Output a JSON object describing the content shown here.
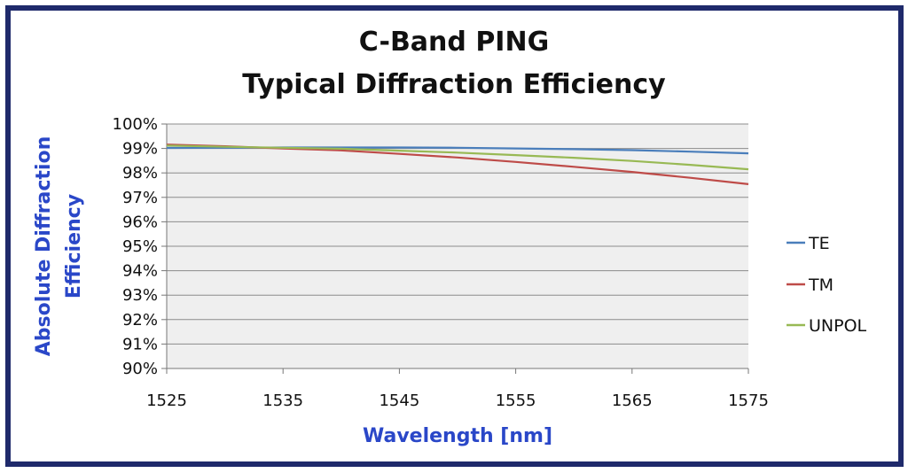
{
  "colors": {
    "border": "#1f2a6b",
    "plot_bg": "#efefef",
    "gridline": "#8c8c8c",
    "axis_label": "#2a47c8"
  },
  "chart_data": {
    "type": "line",
    "title_lines": [
      "C-Band PING",
      "Typical Diffraction Efficiency"
    ],
    "xlabel": "Wavelength [nm]",
    "ylabel_lines": [
      "Absolute Diffraction",
      "Efficiency"
    ],
    "xlim": [
      1525,
      1575
    ],
    "ylim": [
      0.9,
      1.0
    ],
    "x_ticks": [
      1525,
      1535,
      1545,
      1555,
      1565,
      1575
    ],
    "x_tick_labels": [
      "1525",
      "1535",
      "1545",
      "1555",
      "1565",
      "1575"
    ],
    "y_ticks": [
      0.9,
      0.91,
      0.92,
      0.93,
      0.94,
      0.95,
      0.96,
      0.97,
      0.98,
      0.99,
      1.0
    ],
    "y_tick_labels": [
      "90%",
      "91%",
      "92%",
      "93%",
      "94%",
      "95%",
      "96%",
      "97%",
      "98%",
      "99%",
      "100%"
    ],
    "grid": "horizontal",
    "legend_position": "right",
    "x": [
      1525,
      1530,
      1535,
      1540,
      1545,
      1550,
      1555,
      1560,
      1565,
      1570,
      1575
    ],
    "series": [
      {
        "name": "TE",
        "color": "#4a7ebb",
        "values": [
          0.9902,
          0.9903,
          0.9904,
          0.9904,
          0.9904,
          0.9903,
          0.99,
          0.9897,
          0.9893,
          0.9887,
          0.988
        ]
      },
      {
        "name": "TM",
        "color": "#be4b48",
        "values": [
          0.9916,
          0.9909,
          0.99,
          0.9892,
          0.9878,
          0.9863,
          0.9845,
          0.9825,
          0.9804,
          0.978,
          0.9754
        ]
      },
      {
        "name": "UNPOL",
        "color": "#98b954",
        "values": [
          0.9912,
          0.9907,
          0.9903,
          0.9899,
          0.9891,
          0.9883,
          0.9873,
          0.9862,
          0.9849,
          0.9833,
          0.9815
        ]
      }
    ]
  }
}
